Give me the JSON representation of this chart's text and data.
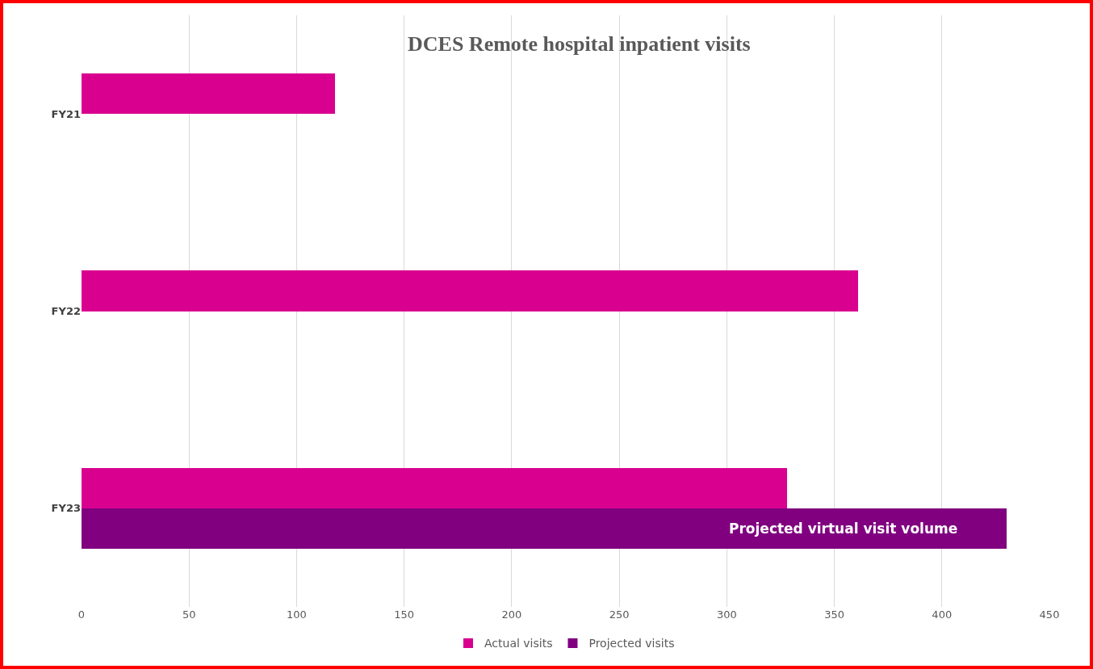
{
  "chart_data": {
    "type": "bar",
    "title": "DCES Remote hospital inpatient visits",
    "orientation": "horizontal",
    "categories": [
      "FY21",
      "FY22",
      "FY23"
    ],
    "series": [
      {
        "name": "Actual visits",
        "color": "#d9008f",
        "values": [
          118,
          361,
          328
        ]
      },
      {
        "name": "Projected visits",
        "color": "#800080",
        "values": [
          null,
          null,
          430
        ]
      }
    ],
    "xlim": [
      0,
      450
    ],
    "xticks": [
      0,
      50,
      100,
      150,
      200,
      250,
      300,
      350,
      400,
      450
    ],
    "grid": "x",
    "legend": "bottom",
    "annotations": [
      {
        "text": "Projected virtual visit volume",
        "x": 354,
        "y": "FY23"
      }
    ]
  }
}
